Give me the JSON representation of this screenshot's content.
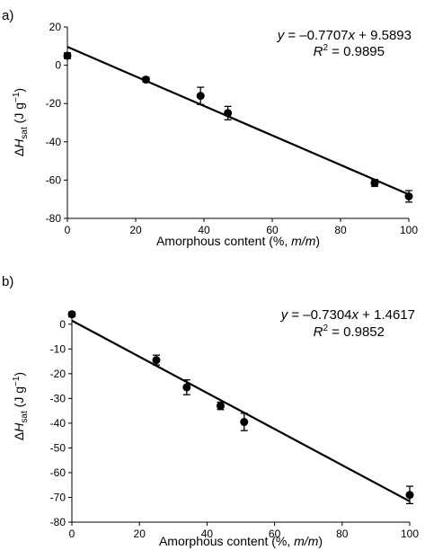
{
  "chart_data": [
    {
      "type": "scatter",
      "panel_label": "a)",
      "xlabel": "Amorphous content (%, m/m)",
      "ylabel": "ΔHsat (J g−1)",
      "xlim": [
        0,
        100
      ],
      "ylim": [
        -80,
        20
      ],
      "x_ticks": [
        0,
        20,
        40,
        60,
        80,
        100
      ],
      "y_ticks": [
        -80,
        -60,
        -40,
        -20,
        0,
        20
      ],
      "points": [
        {
          "x": 0,
          "y": 5.0,
          "err": 1.5
        },
        {
          "x": 23,
          "y": -7.5,
          "err": 1.2
        },
        {
          "x": 39,
          "y": -16.0,
          "err": 4.5
        },
        {
          "x": 47,
          "y": -25.0,
          "err": 3.5
        },
        {
          "x": 90,
          "y": -61.5,
          "err": 1.8
        },
        {
          "x": 100,
          "y": -68.5,
          "err": 3.0
        }
      ],
      "fit": {
        "slope": -0.7707,
        "intercept": 9.5893
      },
      "equation": {
        "y": "y",
        "eq_text": " = –0.7707",
        "x": "x",
        "tail": " + 9.5893",
        "r": "R",
        "r_exp": "2",
        "r_value": " = 0.9895"
      }
    },
    {
      "type": "scatter",
      "panel_label": "b)",
      "xlabel": "Amorphous content (%, m/m)",
      "ylabel": "ΔHsat (J g−1)",
      "xlim": [
        0,
        100
      ],
      "ylim": [
        -80,
        5
      ],
      "x_ticks": [
        0,
        20,
        40,
        60,
        80,
        100
      ],
      "y_ticks": [
        -80,
        -70,
        -60,
        -50,
        -40,
        -30,
        -20,
        -10,
        0
      ],
      "points": [
        {
          "x": 0,
          "y": 4.0,
          "err": 1.0
        },
        {
          "x": 25,
          "y": -14.5,
          "err": 2.0
        },
        {
          "x": 34,
          "y": -25.5,
          "err": 3.0
        },
        {
          "x": 44,
          "y": -33.0,
          "err": 1.5
        },
        {
          "x": 51,
          "y": -39.5,
          "err": 3.5
        },
        {
          "x": 100,
          "y": -69.0,
          "err": 3.5
        }
      ],
      "fit": {
        "slope": -0.7304,
        "intercept": 1.4617
      },
      "equation": {
        "y": "y",
        "eq_text": " = –0.7304",
        "x": "x",
        "tail": " + 1.4617",
        "r": "R",
        "r_exp": "2",
        "r_value": " = 0.9852"
      }
    }
  ]
}
